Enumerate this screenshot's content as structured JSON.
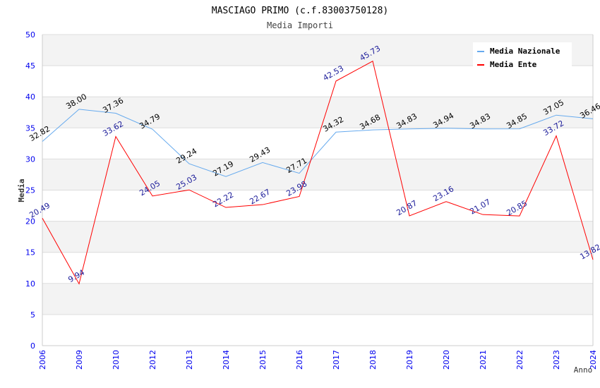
{
  "chart_data": {
    "type": "line",
    "title": "MASCIAGO PRIMO (c.f.83003750128)",
    "subtitle": "Media Importi",
    "xlabel": "Anno",
    "ylabel": "Media",
    "ylim": [
      0,
      50
    ],
    "yticks": [
      "0",
      "5",
      "10",
      "15",
      "20",
      "25",
      "30",
      "35",
      "40",
      "45",
      "50"
    ],
    "categories": [
      "2006",
      "2009",
      "2010",
      "2012",
      "2013",
      "2014",
      "2015",
      "2016",
      "2017",
      "2018",
      "2019",
      "2020",
      "2021",
      "2022",
      "2023",
      "2024"
    ],
    "grid": true,
    "legend_position": "top-right",
    "series": [
      {
        "name": "Media Nazionale",
        "color": "#66aaee",
        "label_color": "#000000",
        "values": [
          32.82,
          38.0,
          37.36,
          34.79,
          29.24,
          27.19,
          29.43,
          27.71,
          34.32,
          34.68,
          34.83,
          34.94,
          34.83,
          34.85,
          37.05,
          36.46
        ],
        "labels": [
          "32.82",
          "38.00",
          "37.36",
          "34.79",
          "29.24",
          "27.19",
          "29.43",
          "27.71",
          "34.32",
          "34.68",
          "34.83",
          "34.94",
          "34.83",
          "34.85",
          "37.05",
          "36.46"
        ]
      },
      {
        "name": "Media Ente",
        "color": "#ff0000",
        "label_color": "#1a1a99",
        "values": [
          20.49,
          9.94,
          33.62,
          24.05,
          25.03,
          22.22,
          22.67,
          23.98,
          42.53,
          45.73,
          20.87,
          23.16,
          21.07,
          20.85,
          33.72,
          13.82
        ],
        "labels": [
          "20.49",
          "9.94",
          "33.62",
          "24.05",
          "25.03",
          "22.22",
          "22.67",
          "23.98",
          "42.53",
          "45.73",
          "20.87",
          "23.16",
          "21.07",
          "20.85",
          "33.72",
          "13.82"
        ]
      }
    ]
  }
}
